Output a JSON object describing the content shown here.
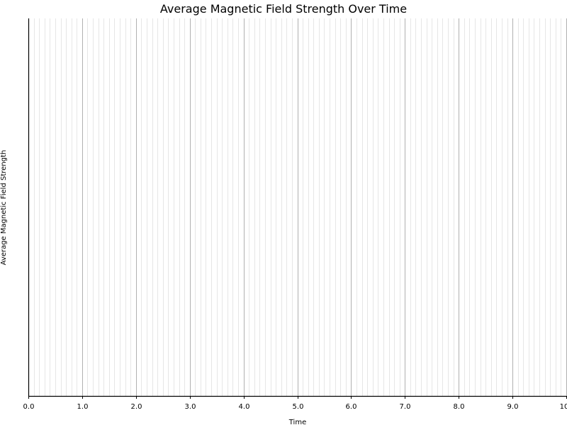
{
  "chart_data": {
    "type": "line",
    "title": "Average Magnetic Field Strength Over Time",
    "xlabel": "Time",
    "ylabel": "Average Magnetic Field Strength",
    "xlim": [
      0,
      10
    ],
    "x_ticks": [
      "0.0",
      "1.0",
      "2.0",
      "3.0",
      "4.0",
      "5.0",
      "6.0",
      "7.0",
      "8.0",
      "9.0",
      "10"
    ],
    "x_minor_step": 0.1,
    "series": [],
    "grid": {
      "x_major": true,
      "x_minor": true,
      "y": false
    },
    "colors": {
      "axis": "#000000",
      "major_grid": "#b0b0b0",
      "minor_grid": "#e6e6e6"
    }
  }
}
